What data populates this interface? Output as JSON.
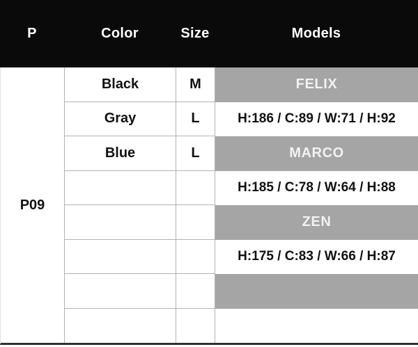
{
  "table": {
    "headers": [
      {
        "label": "P"
      },
      {
        "label": "Color"
      },
      {
        "label": "Size"
      },
      {
        "label": "Models"
      }
    ],
    "product_code": "P09",
    "rows": [
      {
        "color": "Black",
        "size": "M",
        "models": "FELIX"
      },
      {
        "color": "Gray",
        "size": "L",
        "models": "H:186 / C:89 / W:71 / H:92"
      },
      {
        "color": "Blue",
        "size": "L",
        "models": "MARCO"
      },
      {
        "color": "",
        "size": "",
        "models": "H:185 / C:78 / W:64 / H:88"
      },
      {
        "color": "",
        "size": "",
        "models": "ZEN"
      },
      {
        "color": "",
        "size": "",
        "models": "H:175 / C:83 / W:66 / H:87"
      },
      {
        "color": "",
        "size": "",
        "models": ""
      },
      {
        "color": "",
        "size": "",
        "models": ""
      }
    ]
  },
  "colors": {
    "bg": "#ffffff",
    "header_bg": "#0a0a0a",
    "header_text": "#ffffff",
    "model_cell_bg": "#a5a5a5",
    "model_cell_text": "#f2f2f2",
    "grid_line": "#b2b2b2",
    "bottom_border": "#303030",
    "text": "#111111"
  }
}
